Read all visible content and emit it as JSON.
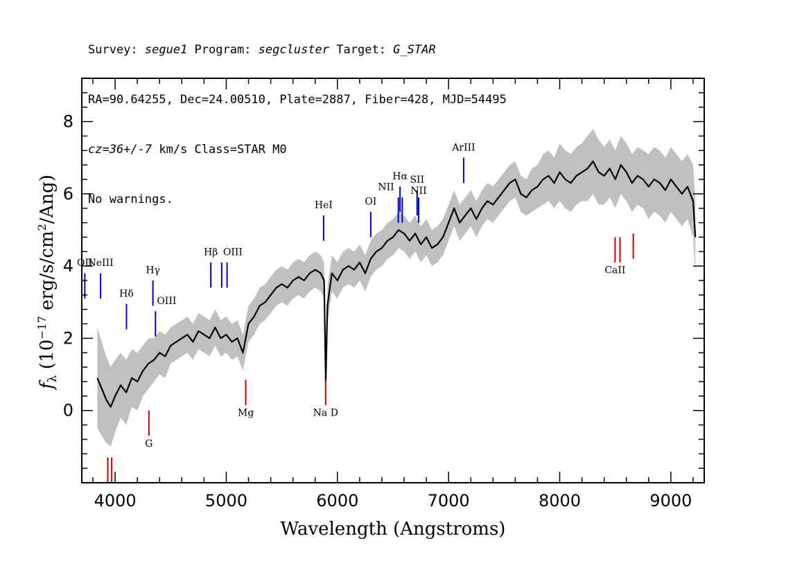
{
  "header": {
    "line1": {
      "survey_label": "Survey: ",
      "survey": "segue1",
      "program_label": " Program: ",
      "program": "segcluster",
      "target_label": " Target: ",
      "target": "G_STAR"
    },
    "line2": "RA=90.64255, Dec=24.00510, Plate=2887, Fiber=428, MJD=54495",
    "line3": {
      "cz": "cz=36+/-7",
      "rest": " km/s Class=STAR M0"
    },
    "line4": "No warnings."
  },
  "chart_data": {
    "type": "line",
    "title": "",
    "xlabel": "Wavelength (Angstroms)",
    "ylabel": "f_λ (10^-17 erg/s/cm^2/Ang)",
    "ylabel_parts": {
      "f": "f",
      "sub": "λ",
      "open": " (10",
      "exp1": "−17",
      "mid": " erg/s/cm",
      "exp2": "2",
      "close": "/Ang)"
    },
    "xlim": [
      3700,
      9300
    ],
    "ylim": [
      -2.0,
      9.2
    ],
    "x_ticks": [
      4000,
      5000,
      6000,
      7000,
      8000,
      9000
    ],
    "x_tick_labels": [
      "4000",
      "5000",
      "6000",
      "7000",
      "8000",
      "9000"
    ],
    "y_ticks": [
      0,
      2,
      4,
      6,
      8
    ],
    "y_tick_labels": [
      "0",
      "2",
      "4",
      "6",
      "8"
    ],
    "colors": {
      "flux": "#000000",
      "error": "#c0c0c0",
      "emission": "#0000cc",
      "absorption": "#cc0000"
    },
    "series": [
      {
        "style": "black line (flux)",
        "x": [
          3760,
          3800,
          3840,
          3880,
          3920,
          3960,
          4000,
          4050,
          4100,
          4150,
          4200,
          4250,
          4300,
          4350,
          4400,
          4450,
          4500,
          4550,
          4600,
          4650,
          4700,
          4750,
          4800,
          4850,
          4900,
          4950,
          5000,
          5050,
          5100,
          5150,
          5200,
          5250,
          5300,
          5350,
          5400,
          5450,
          5500,
          5550,
          5600,
          5650,
          5700,
          5750,
          5800,
          5850,
          5880,
          5895,
          5910,
          5950,
          6000,
          6050,
          6100,
          6150,
          6200,
          6250,
          6300,
          6350,
          6400,
          6450,
          6500,
          6550,
          6600,
          6650,
          6700,
          6750,
          6800,
          6850,
          6900,
          6950,
          7000,
          7050,
          7100,
          7150,
          7200,
          7250,
          7300,
          7350,
          7400,
          7450,
          7500,
          7550,
          7600,
          7650,
          7700,
          7750,
          7800,
          7850,
          7900,
          7950,
          8000,
          8050,
          8100,
          8150,
          8200,
          8250,
          8300,
          8350,
          8400,
          8450,
          8500,
          8550,
          8600,
          8650,
          8700,
          8750,
          8800,
          8850,
          8900,
          8950,
          9000,
          9050,
          9100,
          9150,
          9200,
          9220
        ],
        "y": [
          null,
          null,
          0.9,
          0.6,
          0.3,
          0.1,
          0.4,
          0.7,
          0.5,
          0.9,
          0.8,
          1.1,
          1.3,
          1.4,
          1.6,
          1.5,
          1.8,
          1.9,
          2.0,
          2.1,
          1.9,
          2.2,
          2.1,
          2.0,
          2.3,
          2.0,
          2.1,
          1.9,
          2.0,
          1.6,
          2.4,
          2.6,
          2.9,
          3.0,
          3.2,
          3.4,
          3.5,
          3.4,
          3.6,
          3.7,
          3.6,
          3.8,
          3.9,
          3.8,
          3.6,
          0.8,
          2.9,
          3.8,
          3.6,
          3.9,
          4.0,
          3.9,
          4.1,
          3.8,
          4.2,
          4.4,
          4.5,
          4.7,
          4.8,
          5.0,
          4.9,
          4.7,
          4.9,
          4.6,
          4.8,
          4.5,
          4.6,
          4.8,
          5.2,
          5.6,
          5.2,
          5.4,
          5.6,
          5.3,
          5.6,
          5.8,
          5.7,
          5.9,
          6.1,
          6.3,
          6.4,
          6.0,
          5.9,
          6.1,
          6.2,
          6.4,
          6.5,
          6.3,
          6.6,
          6.4,
          6.3,
          6.5,
          6.6,
          6.7,
          6.9,
          6.6,
          6.5,
          6.7,
          6.4,
          6.8,
          6.6,
          6.3,
          6.5,
          6.4,
          6.2,
          6.4,
          6.3,
          6.1,
          6.4,
          6.2,
          6.0,
          6.2,
          5.8,
          4.8
        ]
      }
    ],
    "error_band": {
      "x": [
        3760,
        3800,
        3840,
        3880,
        3920,
        3960,
        4000,
        4050,
        4100,
        4150,
        4200,
        4250,
        4300,
        4350,
        4400,
        4450,
        4500,
        4550,
        4600,
        4650,
        4700,
        4750,
        4800,
        4850,
        4900,
        4950,
        5000,
        5050,
        5100,
        5150,
        5200,
        5250,
        5300,
        5350,
        5400,
        5450,
        5500,
        5550,
        5600,
        5650,
        5700,
        5750,
        5800,
        5850,
        5880,
        5895,
        5910,
        5950,
        6000,
        6050,
        6100,
        6150,
        6200,
        6250,
        6300,
        6350,
        6400,
        6450,
        6500,
        6550,
        6600,
        6650,
        6700,
        6750,
        6800,
        6850,
        6900,
        6950,
        7000,
        7050,
        7100,
        7150,
        7200,
        7250,
        7300,
        7350,
        7400,
        7450,
        7500,
        7550,
        7600,
        7650,
        7700,
        7750,
        7800,
        7850,
        7900,
        7950,
        8000,
        8050,
        8100,
        8150,
        8200,
        8250,
        8300,
        8350,
        8400,
        8450,
        8500,
        8550,
        8600,
        8650,
        8700,
        8750,
        8800,
        8850,
        8900,
        8950,
        9000,
        9050,
        9100,
        9150,
        9200,
        9220
      ],
      "half_width": [
        0,
        0,
        1.4,
        1.3,
        1.2,
        1.1,
        1.0,
        0.9,
        0.9,
        0.8,
        0.8,
        0.7,
        0.7,
        0.6,
        0.6,
        0.6,
        0.5,
        0.5,
        0.5,
        0.5,
        0.5,
        0.5,
        0.5,
        0.5,
        0.5,
        0.5,
        0.5,
        0.5,
        0.5,
        0.5,
        0.5,
        0.5,
        0.5,
        0.5,
        0.5,
        0.5,
        0.5,
        0.5,
        0.5,
        0.5,
        0.5,
        0.5,
        0.5,
        0.5,
        0.5,
        0.5,
        0.5,
        0.5,
        0.5,
        0.5,
        0.5,
        0.5,
        0.5,
        0.5,
        0.5,
        0.5,
        0.5,
        0.5,
        0.5,
        0.5,
        0.5,
        0.5,
        0.5,
        0.5,
        0.5,
        0.5,
        0.5,
        0.5,
        0.5,
        0.5,
        0.5,
        0.5,
        0.5,
        0.5,
        0.5,
        0.5,
        0.5,
        0.5,
        0.5,
        0.5,
        0.5,
        0.5,
        0.5,
        0.6,
        0.6,
        0.7,
        0.7,
        0.7,
        0.8,
        0.8,
        0.8,
        0.8,
        0.8,
        0.9,
        0.9,
        0.9,
        0.8,
        0.8,
        0.8,
        0.8,
        0.8,
        0.8,
        0.8,
        0.8,
        0.9,
        0.9,
        0.9,
        0.9,
        0.9,
        0.9,
        0.9,
        0.9,
        1.0,
        1.0
      ]
    },
    "line_markers": [
      {
        "label": "OII",
        "kind": "emission",
        "x": 3727,
        "y_bottom": 3.1,
        "y_top": 3.8,
        "label_y": 4.0,
        "label_anchor": "middle"
      },
      {
        "label": "NeIII",
        "kind": "emission",
        "x": 3869,
        "y_bottom": 3.1,
        "y_top": 3.8,
        "label_y": 4.0,
        "label_anchor": "middle"
      },
      {
        "label": "Hδ",
        "kind": "emission",
        "x": 4102,
        "y_bottom": 2.25,
        "y_top": 2.95,
        "label_y": 3.15,
        "label_anchor": "middle"
      },
      {
        "label": "Hγ",
        "kind": "emission",
        "x": 4340,
        "y_bottom": 2.9,
        "y_top": 3.6,
        "label_y": 3.8,
        "label_anchor": "middle"
      },
      {
        "label": "OIII",
        "kind": "emission",
        "x": 4363,
        "y_bottom": 2.05,
        "y_top": 2.75,
        "label_y": 2.95,
        "label_anchor": "start"
      },
      {
        "label": "Hβ",
        "kind": "emission",
        "x": 4861,
        "y_bottom": 3.4,
        "y_top": 4.1,
        "label_y": 4.3,
        "label_anchor": "middle"
      },
      {
        "label": "OIII",
        "kind": "emission",
        "x": 4959,
        "y_bottom": 3.4,
        "y_top": 4.1,
        "label_y": 4.3,
        "label_anchor": "start"
      },
      {
        "label": "",
        "kind": "emission",
        "x": 5007,
        "y_bottom": 3.4,
        "y_top": 4.1,
        "label_y": 4.3,
        "label_anchor": "middle"
      },
      {
        "label": "HeI",
        "kind": "emission",
        "x": 5876,
        "y_bottom": 4.7,
        "y_top": 5.4,
        "label_y": 5.6,
        "label_anchor": "middle"
      },
      {
        "label": "OI",
        "kind": "emission",
        "x": 6300,
        "y_bottom": 4.8,
        "y_top": 5.5,
        "label_y": 5.7,
        "label_anchor": "middle"
      },
      {
        "label": "NII",
        "kind": "emission",
        "x": 6548,
        "y_bottom": 5.2,
        "y_top": 5.9,
        "label_y": 6.1,
        "label_anchor": "end"
      },
      {
        "label": "Hα",
        "kind": "emission",
        "x": 6563,
        "y_bottom": 5.5,
        "y_top": 6.2,
        "label_y": 6.4,
        "label_anchor": "middle"
      },
      {
        "label": "",
        "kind": "emission",
        "x": 6583,
        "y_bottom": 5.2,
        "y_top": 5.9,
        "label_y": 6.1,
        "label_anchor": "middle"
      },
      {
        "label": "SII",
        "kind": "emission",
        "x": 6717,
        "y_bottom": 5.4,
        "y_top": 6.1,
        "label_y": 6.3,
        "label_anchor": "middle"
      },
      {
        "label": "NII",
        "kind": "emission",
        "x": 6731,
        "y_bottom": 5.2,
        "y_top": 5.9,
        "label_y": 6.0,
        "label_anchor": "middle"
      },
      {
        "label": "ArIII",
        "kind": "emission",
        "x": 7136,
        "y_bottom": 6.3,
        "y_top": 7.0,
        "label_y": 7.2,
        "label_anchor": "middle"
      },
      {
        "label": "",
        "kind": "absorption",
        "x": 3934,
        "y_bottom": -2.0,
        "y_top": -1.3,
        "label_y": -2.0,
        "label_anchor": "middle"
      },
      {
        "label": "",
        "kind": "absorption",
        "x": 3969,
        "y_bottom": -2.0,
        "y_top": -1.3,
        "label_y": -2.0,
        "label_anchor": "middle"
      },
      {
        "label": "G",
        "kind": "absorption",
        "x": 4304,
        "y_bottom": -0.7,
        "y_top": 0.0,
        "label_y": -1.0,
        "label_anchor": "middle"
      },
      {
        "label": "Mg",
        "kind": "absorption",
        "x": 5175,
        "y_bottom": 0.15,
        "y_top": 0.85,
        "label_y": -0.15,
        "label_anchor": "middle"
      },
      {
        "label": "Na D",
        "kind": "absorption",
        "x": 5894,
        "y_bottom": 0.15,
        "y_top": 0.85,
        "label_y": -0.15,
        "label_anchor": "middle"
      },
      {
        "label": "CaII",
        "kind": "absorption",
        "x": 8498,
        "y_bottom": 4.1,
        "y_top": 4.8,
        "label_y": 3.8,
        "label_anchor": "middle"
      },
      {
        "label": "",
        "kind": "absorption",
        "x": 8542,
        "y_bottom": 4.1,
        "y_top": 4.8,
        "label_y": 3.8,
        "label_anchor": "middle"
      },
      {
        "label": "",
        "kind": "absorption",
        "x": 8662,
        "y_bottom": 4.2,
        "y_top": 4.9,
        "label_y": 3.8,
        "label_anchor": "middle"
      }
    ]
  }
}
